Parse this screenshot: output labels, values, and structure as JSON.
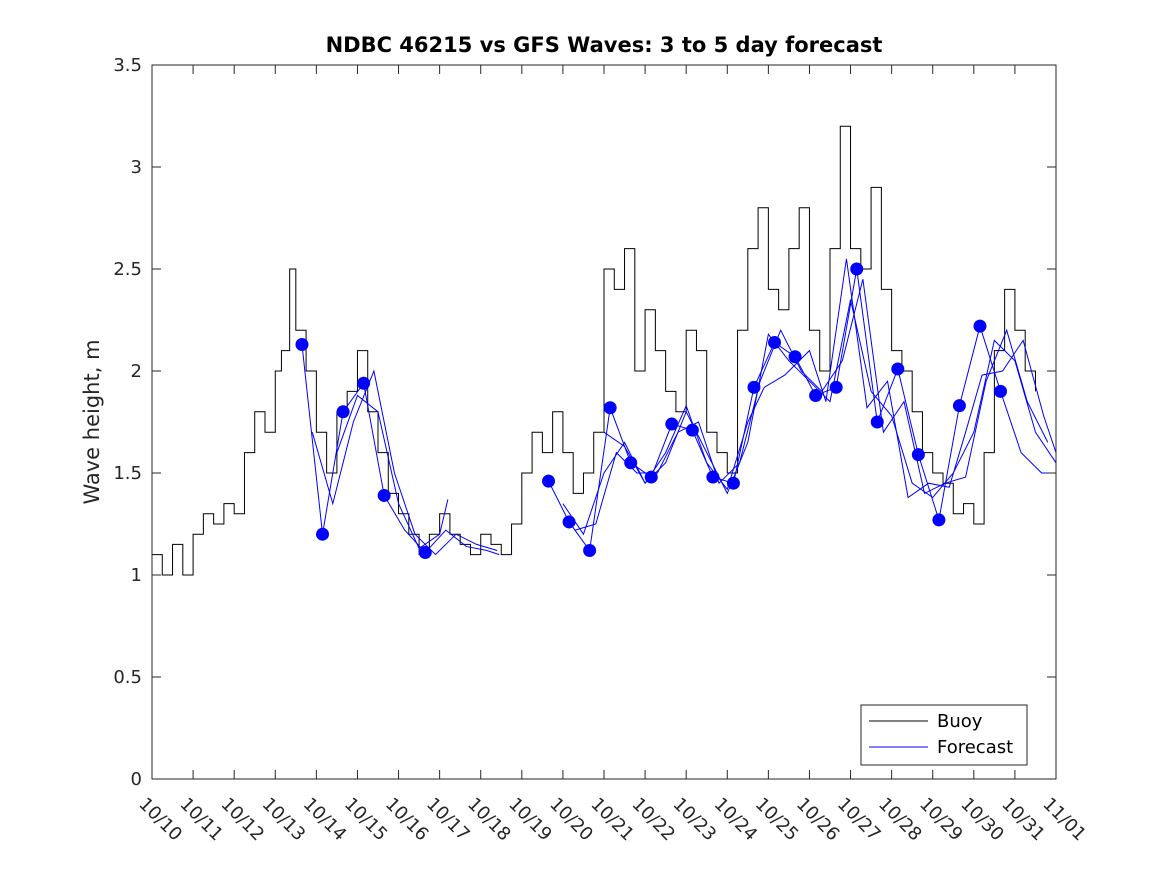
{
  "chart_data": {
    "type": "line",
    "title": "NDBC 46215 vs GFS Waves: 3 to 5 day forecast",
    "xlabel": "",
    "ylabel": "Wave height, m",
    "x_unit": "days since 10/10",
    "xlim": [
      0,
      22
    ],
    "ylim": [
      0,
      3.5
    ],
    "y_ticks": [
      0,
      0.5,
      1,
      1.5,
      2,
      2.5,
      3,
      3.5
    ],
    "y_tick_labels": [
      "0",
      "0.5",
      "1",
      "1.5",
      "2",
      "2.5",
      "3",
      "3.5"
    ],
    "x_ticks": [
      0,
      1,
      2,
      3,
      4,
      5,
      6,
      7,
      8,
      9,
      10,
      11,
      12,
      13,
      14,
      15,
      16,
      17,
      18,
      19,
      20,
      21,
      22
    ],
    "x_tick_labels": [
      "10/10",
      "10/11",
      "10/12",
      "10/13",
      "10/14",
      "10/15",
      "10/16",
      "10/17",
      "10/18",
      "10/19",
      "10/20",
      "10/21",
      "10/22",
      "10/23",
      "10/24",
      "10/25",
      "10/26",
      "10/27",
      "10/28",
      "10/29",
      "10/30",
      "10/31",
      "11/01"
    ],
    "grid": false,
    "legend": {
      "position": "bottom-right",
      "entries": [
        "Buoy",
        "Forecast"
      ]
    },
    "colors": {
      "buoy": "#000000",
      "forecast": "#0000ff",
      "axes": "#262626"
    },
    "buoy": {
      "name": "Buoy",
      "x": [
        0,
        0.25,
        0.5,
        0.75,
        1,
        1.25,
        1.5,
        1.75,
        2,
        2.25,
        2.5,
        2.75,
        3,
        3.15,
        3.35,
        3.5,
        3.75,
        4,
        4.25,
        4.5,
        4.75,
        5,
        5.25,
        5.5,
        5.75,
        6,
        6.25,
        6.5,
        6.75,
        7,
        7.25,
        7.5,
        7.75,
        8,
        8.25,
        8.5,
        8.75,
        9,
        9.25,
        9.5,
        9.75,
        10,
        10.25,
        10.5,
        10.75,
        11,
        11.25,
        11.5,
        11.75,
        12,
        12.25,
        12.5,
        12.75,
        13,
        13.25,
        13.5,
        13.75,
        14,
        14.25,
        14.5,
        14.75,
        15,
        15.25,
        15.5,
        15.75,
        16,
        16.25,
        16.5,
        16.75,
        17,
        17.25,
        17.5,
        17.75,
        18,
        18.25,
        18.5,
        18.75,
        19,
        19.25,
        19.5,
        19.75,
        20,
        20.25,
        20.5,
        20.75,
        21,
        21.25,
        21.5
      ],
      "values": [
        1.1,
        1.0,
        1.15,
        1.0,
        1.2,
        1.3,
        1.25,
        1.35,
        1.3,
        1.6,
        1.8,
        1.7,
        2.0,
        2.1,
        2.5,
        2.2,
        2.0,
        1.7,
        1.5,
        1.8,
        1.9,
        2.1,
        1.8,
        1.6,
        1.4,
        1.3,
        1.2,
        1.1,
        1.2,
        1.3,
        1.2,
        1.15,
        1.1,
        1.2,
        1.15,
        1.1,
        1.25,
        1.5,
        1.7,
        1.6,
        1.8,
        1.6,
        1.4,
        1.5,
        1.7,
        2.5,
        2.4,
        2.6,
        2.0,
        2.3,
        2.1,
        1.9,
        1.8,
        2.2,
        2.1,
        1.7,
        1.6,
        1.5,
        2.2,
        2.6,
        2.8,
        2.4,
        2.3,
        2.6,
        2.8,
        2.2,
        2.0,
        2.6,
        3.2,
        2.6,
        2.5,
        2.9,
        2.4,
        2.1,
        2.0,
        1.8,
        1.6,
        1.5,
        1.45,
        1.3,
        1.35,
        1.25,
        1.6,
        2.1,
        2.4,
        2.2,
        2.0,
        1.9
      ]
    },
    "forecast_runs": [
      {
        "name": "Forecast",
        "x": [
          3.65,
          4.15,
          4.65,
          5.15,
          5.65,
          6.15,
          6.65,
          7.15,
          7.65,
          8.15,
          8.45
        ],
        "values": [
          2.13,
          1.2,
          1.8,
          1.94,
          1.39,
          1.22,
          1.11,
          1.22,
          1.14,
          1.12,
          1.1
        ]
      },
      {
        "name": "Forecast",
        "x": [
          3.9,
          4.4,
          4.9,
          5.4,
          5.9,
          6.4,
          6.9,
          7.4,
          7.9,
          8.4
        ],
        "values": [
          1.7,
          1.35,
          1.75,
          2.0,
          1.5,
          1.2,
          1.1,
          1.2,
          1.15,
          1.12
        ]
      },
      {
        "name": "Forecast",
        "x": [
          4.5,
          5.0,
          5.5,
          6.0,
          6.5,
          7.0,
          7.2
        ],
        "values": [
          1.6,
          1.88,
          1.8,
          1.35,
          1.13,
          1.2,
          1.37
        ]
      },
      {
        "name": "Forecast",
        "x": [
          9.65,
          10.15,
          10.65,
          11.15,
          11.65,
          12.15,
          12.65,
          13.15,
          13.65,
          14.15,
          14.65,
          15.15,
          15.65,
          16.15,
          16.65,
          17.15,
          17.65,
          18.15,
          18.65,
          19.15,
          19.65,
          20.15,
          20.65,
          21.15,
          21.65,
          22.0
        ],
        "values": [
          1.46,
          1.26,
          1.12,
          1.82,
          1.55,
          1.48,
          1.74,
          1.71,
          1.48,
          1.45,
          1.92,
          2.14,
          2.07,
          1.88,
          1.92,
          2.5,
          1.75,
          2.01,
          1.59,
          1.27,
          1.83,
          2.22,
          1.9,
          1.6,
          1.5,
          1.5
        ]
      },
      {
        "name": "Forecast",
        "x": [
          10.0,
          10.5,
          11.0,
          11.5,
          12.0,
          12.5,
          13.0,
          13.5,
          14.0,
          14.5,
          15.0,
          15.5,
          16.0,
          16.5,
          17.0,
          17.5,
          18.0,
          18.5,
          19.0,
          19.5,
          20.0,
          20.5,
          21.0,
          21.5,
          22.0
        ],
        "values": [
          1.35,
          1.2,
          1.5,
          1.65,
          1.45,
          1.55,
          1.8,
          1.6,
          1.4,
          1.65,
          2.18,
          2.05,
          1.95,
          1.85,
          2.35,
          1.9,
          1.78,
          1.45,
          1.38,
          1.5,
          1.7,
          2.15,
          2.05,
          1.7,
          1.55
        ]
      },
      {
        "name": "Forecast",
        "x": [
          10.3,
          10.8,
          11.3,
          11.8,
          12.3,
          12.8,
          13.3,
          13.8,
          14.3,
          14.8,
          15.3,
          15.8,
          16.3,
          16.8,
          17.3,
          17.8,
          18.3,
          18.8,
          19.3,
          19.8,
          20.3,
          20.8,
          21.3,
          21.8
        ],
        "values": [
          1.22,
          1.25,
          1.6,
          1.5,
          1.5,
          1.7,
          1.75,
          1.45,
          1.55,
          1.95,
          2.2,
          2.0,
          1.9,
          2.05,
          2.45,
          1.7,
          1.85,
          1.4,
          1.45,
          1.48,
          1.95,
          2.2,
          1.85,
          1.65
        ]
      },
      {
        "name": "Forecast",
        "x": [
          11.0,
          11.5,
          12.0,
          12.5,
          13.0,
          13.5,
          14.0,
          14.5,
          14.9,
          15.4,
          16.0,
          16.4,
          16.9,
          17.4,
          17.9,
          18.4,
          18.9,
          19.4,
          19.8,
          20.2,
          20.7,
          21.2,
          21.7,
          22.0
        ],
        "values": [
          1.7,
          1.63,
          1.45,
          1.6,
          1.83,
          1.55,
          1.42,
          1.75,
          1.92,
          1.98,
          2.1,
          1.85,
          2.55,
          1.82,
          1.95,
          1.38,
          1.45,
          1.43,
          1.7,
          1.98,
          2.0,
          2.15,
          1.78,
          1.6
        ]
      }
    ],
    "forecast_markers": {
      "x": [
        3.65,
        4.15,
        4.65,
        5.15,
        5.65,
        6.65,
        9.65,
        10.15,
        10.65,
        11.15,
        11.65,
        12.15,
        12.65,
        13.15,
        13.65,
        14.15,
        14.65,
        15.15,
        15.65,
        16.15,
        16.65,
        17.15,
        17.65,
        18.15,
        18.65,
        19.15,
        19.65,
        20.15,
        20.65
      ],
      "values": [
        2.13,
        1.2,
        1.8,
        1.94,
        1.39,
        1.11,
        1.46,
        1.26,
        1.12,
        1.82,
        1.55,
        1.48,
        1.74,
        1.71,
        1.48,
        1.45,
        1.92,
        2.14,
        2.07,
        1.88,
        1.92,
        2.5,
        1.75,
        2.01,
        1.59,
        1.27,
        1.83,
        2.22,
        1.9
      ]
    }
  }
}
